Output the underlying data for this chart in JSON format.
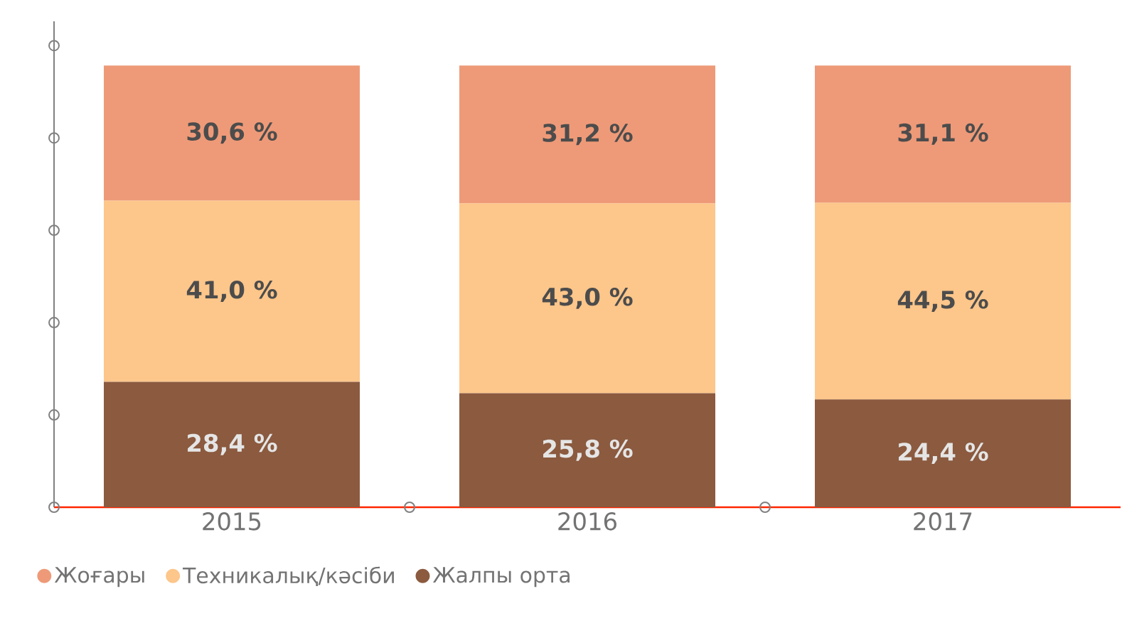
{
  "chart_data": {
    "type": "bar",
    "stacked": true,
    "categories": [
      "2015",
      "2016",
      "2017"
    ],
    "series": [
      {
        "name": "Жалпы орта",
        "color": "#8b5a3f",
        "values": [
          28.4,
          25.8,
          24.4
        ],
        "value_labels": [
          "28,4 %",
          "25,8 %",
          "24,4 %"
        ]
      },
      {
        "name": "Техникалық/кәсіби",
        "color": "#fdc68a",
        "values": [
          41.0,
          43.0,
          44.5
        ],
        "value_labels": [
          "41,0 %",
          "43,0 %",
          "44,5 %"
        ]
      },
      {
        "name": "Жоғары",
        "color": "#ee9a78",
        "values": [
          30.6,
          31.2,
          31.1
        ],
        "value_labels": [
          "30,6 %",
          "31,2 %",
          "31,1 %"
        ]
      }
    ],
    "tick_labels": "x",
    "legend": "bottom left"
  }
}
